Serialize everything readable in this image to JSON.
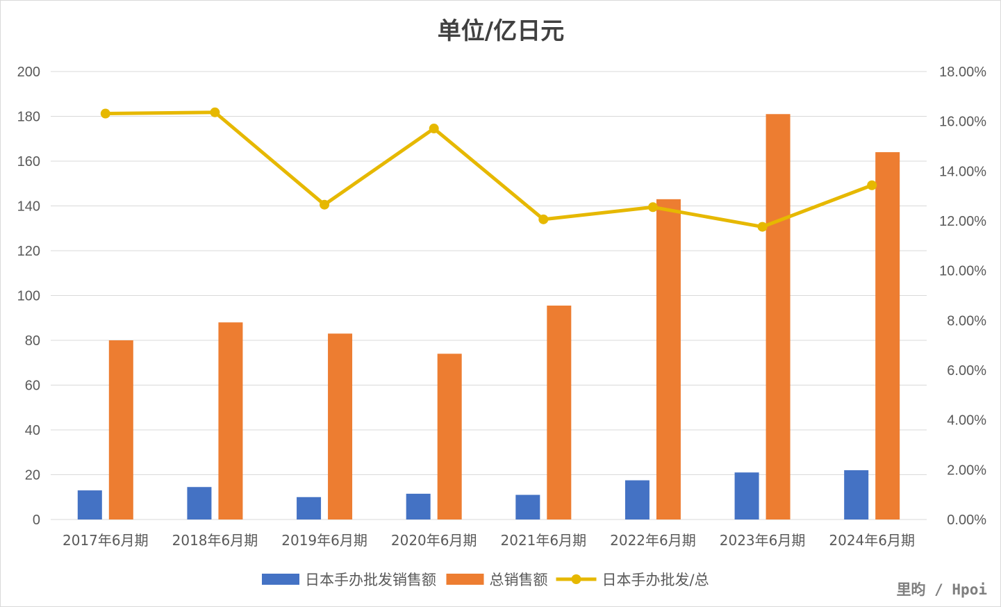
{
  "chart_data": {
    "type": "bar",
    "title": "单位/亿日元",
    "categories": [
      "2017年6月期",
      "2018年6月期",
      "2019年6月期",
      "2020年6月期",
      "2021年6月期",
      "2022年6月期",
      "2023年6月期",
      "2024年6月期"
    ],
    "series": [
      {
        "name": "日本手办批发销售额",
        "type": "bar",
        "axis": "left",
        "color": "#4472c4",
        "values": [
          13,
          14.5,
          10,
          11.5,
          11,
          17.5,
          21,
          22
        ]
      },
      {
        "name": "总销售额",
        "type": "bar",
        "axis": "left",
        "color": "#ed7d31",
        "values": [
          80,
          88,
          83,
          74,
          95.5,
          143,
          181,
          164
        ]
      },
      {
        "name": "日本手办批发/总",
        "type": "line",
        "axis": "right",
        "color": "#e6b800",
        "values": [
          0.1631,
          0.1636,
          0.1265,
          0.1571,
          0.1206,
          0.1255,
          0.1176,
          0.1343
        ]
      }
    ],
    "y_left": {
      "min": 0,
      "max": 200,
      "step": 20,
      "ticks": [
        "0",
        "20",
        "40",
        "60",
        "80",
        "100",
        "120",
        "140",
        "160",
        "180",
        "200"
      ]
    },
    "y_right": {
      "min": 0,
      "max": 0.18,
      "step": 0.02,
      "ticks": [
        "0.00%",
        "2.00%",
        "4.00%",
        "6.00%",
        "8.00%",
        "10.00%",
        "12.00%",
        "14.00%",
        "16.00%",
        "18.00%"
      ]
    },
    "grid": true,
    "legend_position": "bottom"
  },
  "watermark": "里昀 / Hpoi"
}
